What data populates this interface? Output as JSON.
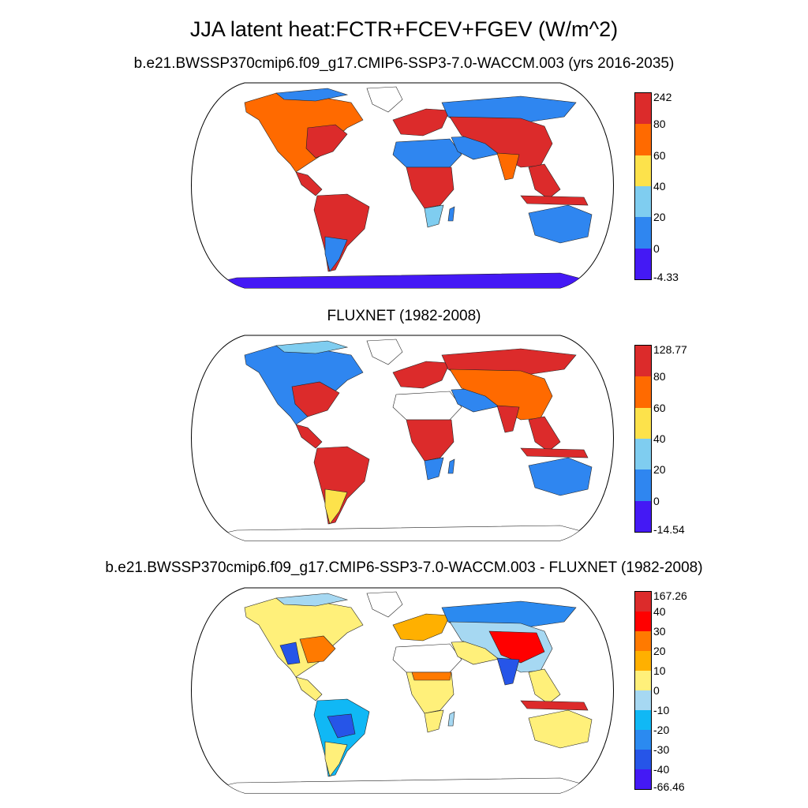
{
  "title": "JJA latent heat:FCTR+FCEV+FGEV (W/m^2)",
  "panels": [
    {
      "id": "model",
      "title": "b.e21.BWSSP370cmip6.f09_g17.CMIP6-SSP3-7.0-WACCM.003 (yrs 2016-2035)",
      "colorbar": {
        "labels": [
          "242",
          "80",
          "60",
          "40",
          "20",
          "0",
          "-4.33"
        ],
        "colors": [
          "#dc2b2b",
          "#ff6a00",
          "#fde24b",
          "#7fcdf0",
          "#2f86f0",
          "#4419f5"
        ]
      }
    },
    {
      "id": "fluxnet",
      "title": "FLUXNET (1982-2008)",
      "colorbar": {
        "labels": [
          "128.77",
          "80",
          "60",
          "40",
          "20",
          "0",
          "-14.54"
        ],
        "colors": [
          "#dc2b2b",
          "#ff6a00",
          "#fde24b",
          "#7fcdf0",
          "#2f86f0",
          "#4419f5"
        ]
      }
    },
    {
      "id": "difference",
      "title": "b.e21.BWSSP370cmip6.f09_g17.CMIP6-SSP3-7.0-WACCM.003 - FLUXNET (1982-2008)",
      "colorbar": {
        "labels": [
          "167.26",
          "40",
          "30",
          "20",
          "10",
          "0",
          "-10",
          "-20",
          "-30",
          "-40",
          "-66.46"
        ],
        "colors": [
          "#dc2b2b",
          "#ff0000",
          "#ff7a00",
          "#ffb000",
          "#fff07a",
          "#a6d8f2",
          "#10b8f5",
          "#2b8af0",
          "#2655e8",
          "#4419f5"
        ]
      }
    }
  ]
}
